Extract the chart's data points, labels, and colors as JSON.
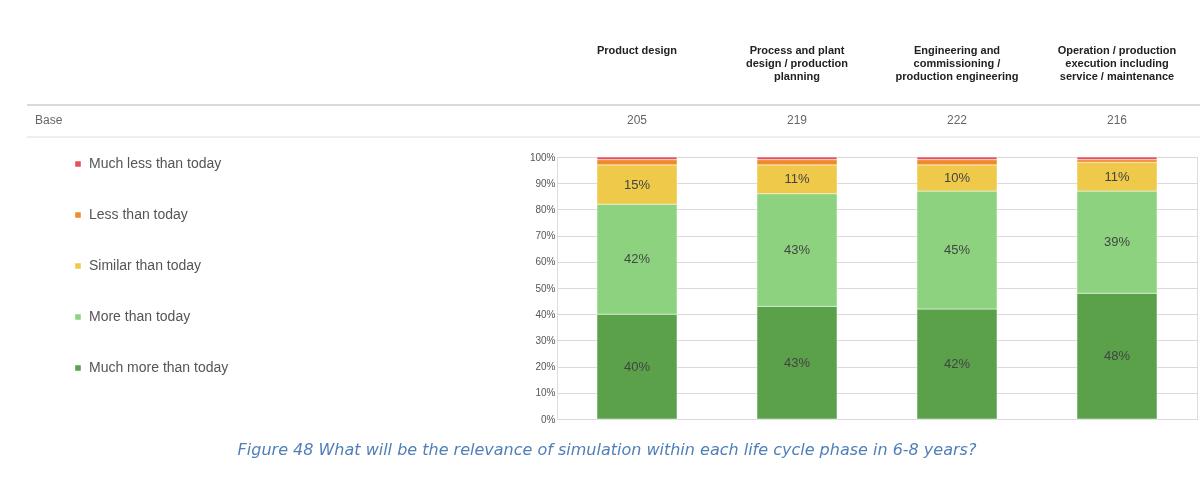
{
  "chart_data": {
    "type": "bar",
    "stacked": true,
    "title": "Figure 48 What will be the relevance of simulation within each life cycle phase in 6-8 years?",
    "categories": [
      "Product design",
      "Process and plant design / production planning",
      "Engineering and commissioning / production engineering",
      "Operation / production execution including service / maintenance"
    ],
    "series": [
      {
        "name": "Much more than today",
        "color": "#5aa14a",
        "values": [
          40,
          43,
          42,
          48
        ],
        "value_labels": [
          "40%",
          "43%",
          "42%",
          "48%"
        ]
      },
      {
        "name": "More than today",
        "color": "#8dd27f",
        "values": [
          42,
          43,
          45,
          39
        ],
        "value_labels": [
          "42%",
          "43%",
          "45%",
          "39%"
        ]
      },
      {
        "name": "Similar than today",
        "color": "#eec94a",
        "values": [
          15,
          11,
          10,
          11
        ],
        "value_labels": [
          "15%",
          "11%",
          "10%",
          "11%"
        ]
      },
      {
        "name": "Less than today",
        "color": "#f08a2c",
        "values": [
          2,
          2,
          2,
          1
        ],
        "value_labels": [
          null,
          null,
          null,
          null
        ]
      },
      {
        "name": "Much less than today",
        "color": "#e8505b",
        "values": [
          1,
          1,
          1,
          1
        ],
        "value_labels": [
          null,
          null,
          null,
          null
        ]
      }
    ],
    "ylim": [
      0,
      100
    ],
    "yticks": [
      {
        "value": 0,
        "label": "0%"
      },
      {
        "value": 10,
        "label": "10%"
      },
      {
        "value": 20,
        "label": "20%"
      },
      {
        "value": 30,
        "label": "30%"
      },
      {
        "value": 40,
        "label": "40%"
      },
      {
        "value": 50,
        "label": "50%"
      },
      {
        "value": 60,
        "label": "60%"
      },
      {
        "value": 70,
        "label": "70%"
      },
      {
        "value": 80,
        "label": "80%"
      },
      {
        "value": 90,
        "label": "90%"
      },
      {
        "value": 100,
        "label": "100%"
      }
    ],
    "grid": "y",
    "legend": "left",
    "annotations": [
      "Base",
      "205",
      "219",
      "222",
      "216"
    ]
  }
}
